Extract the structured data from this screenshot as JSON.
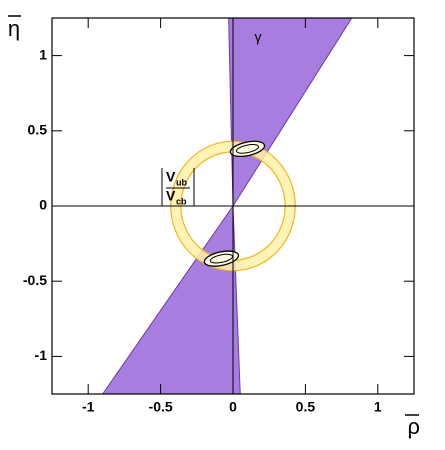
{
  "chart_data": {
    "type": "ckm-constraints",
    "x_label": "ρ",
    "y_label": "η",
    "xlim": [
      -1.25,
      1.25
    ],
    "ylim": [
      -1.25,
      1.25
    ],
    "xticks": [
      -1,
      -0.5,
      0,
      0.5,
      1
    ],
    "yticks": [
      -1,
      -0.5,
      0,
      0.5,
      1
    ],
    "regions": [
      {
        "name": "γ",
        "color": "#a77ee0",
        "edge_color": "#6a3aa8",
        "pieces": [
          {
            "x": [
              0,
              -0.03,
              0.82
            ],
            "y": [
              0,
              1.25,
              1.25
            ]
          },
          {
            "x": [
              0,
              -0.9,
              0.05
            ],
            "y": [
              0,
              -1.25,
              -1.25
            ]
          }
        ]
      }
    ],
    "ring": {
      "color": "#fff2a8",
      "edge_color": "#f2b51c",
      "center": [
        0,
        0
      ],
      "radii": [
        0.36,
        0.43
      ]
    },
    "ring_label": {
      "numerator": "V",
      "numerator_sub": "ub",
      "denominator": "V",
      "denominator_sub": "cb"
    },
    "contours": [
      {
        "x": 0.1,
        "y": 0.38,
        "rx": 0.12,
        "ry": 0.045,
        "angle": 12
      },
      {
        "x": -0.08,
        "y": -0.35,
        "rx": 0.12,
        "ry": 0.045,
        "angle": 12
      }
    ]
  }
}
